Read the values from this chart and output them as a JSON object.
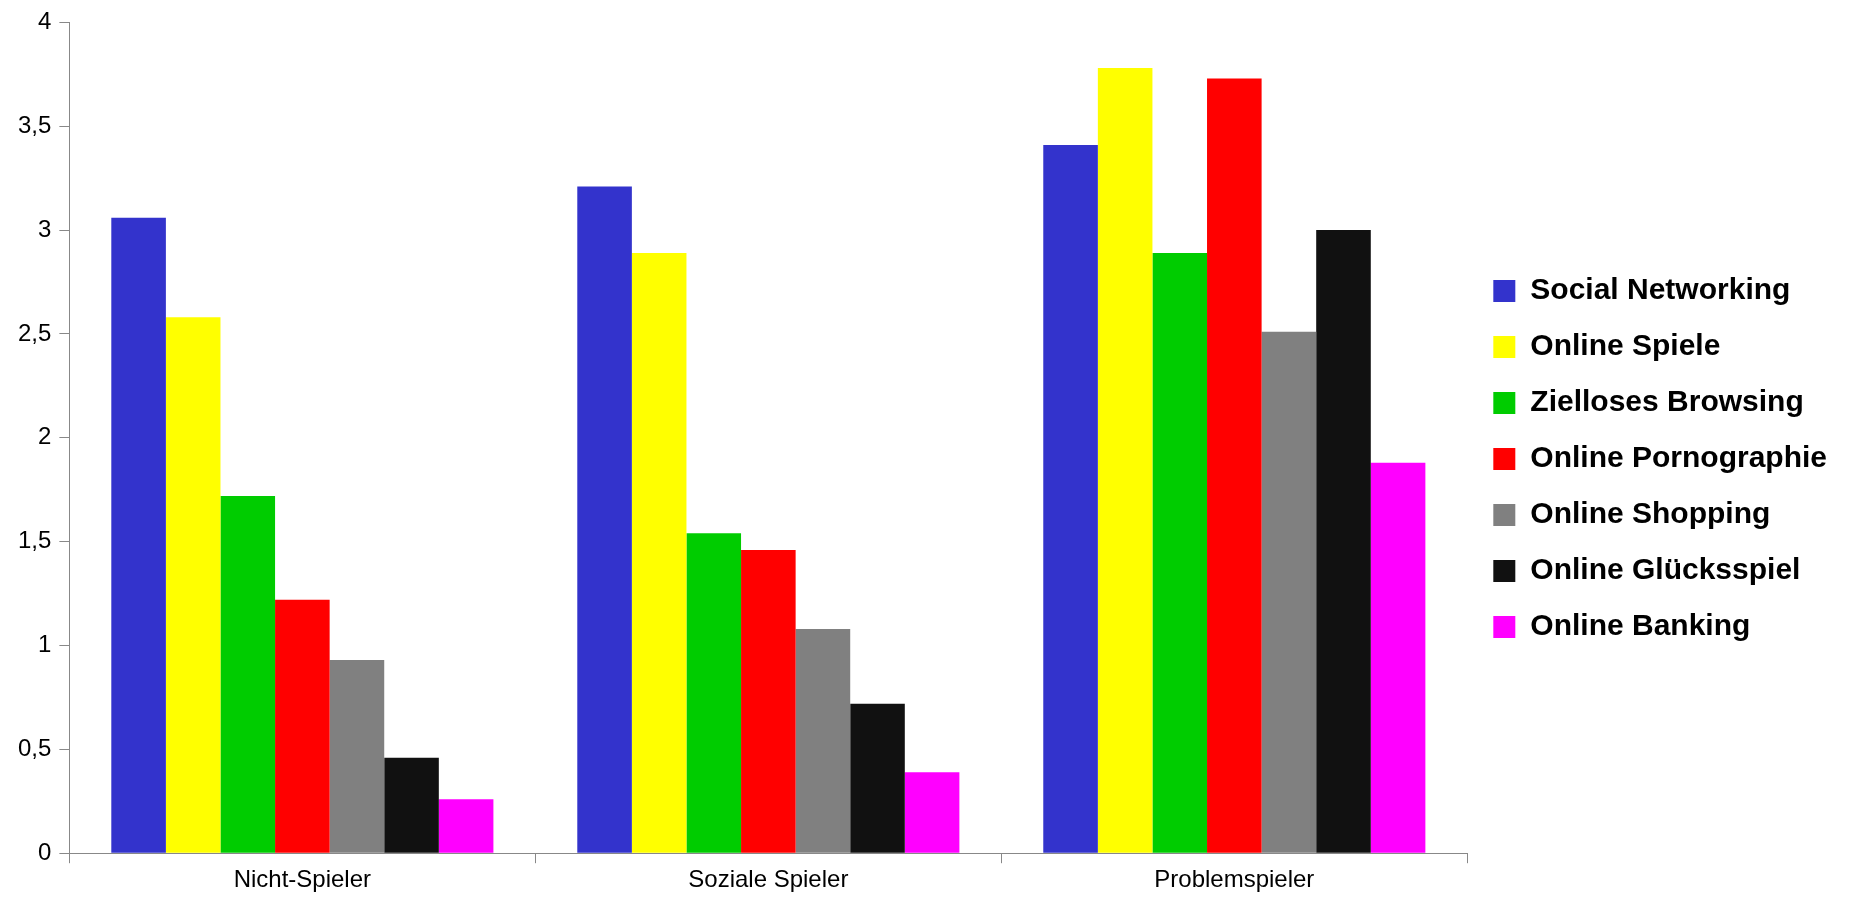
{
  "chart_data": {
    "type": "bar",
    "categories": [
      "Nicht-Spieler",
      "Soziale Spieler",
      "Problemspieler"
    ],
    "series": [
      {
        "name": "Social Networking",
        "color": "#3333cc",
        "values": [
          3.06,
          3.21,
          3.41
        ]
      },
      {
        "name": "Online Spiele",
        "color": "#ffff00",
        "values": [
          2.58,
          2.89,
          3.78
        ]
      },
      {
        "name": "Zielloses Browsing",
        "color": "#00cc00",
        "values": [
          1.72,
          1.54,
          2.89
        ]
      },
      {
        "name": "Online Pornographie",
        "color": "#ff0000",
        "values": [
          1.22,
          1.46,
          3.73
        ]
      },
      {
        "name": "Online Shopping",
        "color": "#808080",
        "values": [
          0.93,
          1.08,
          2.51
        ]
      },
      {
        "name": "Online Glücksspiel",
        "color": "#111111",
        "values": [
          0.46,
          0.72,
          3.0
        ]
      },
      {
        "name": "Online Banking",
        "color": "#ff00ff",
        "values": [
          0.26,
          0.39,
          1.88
        ]
      }
    ],
    "ylim": [
      0,
      4
    ],
    "yticks": [
      0,
      {
        "value": 0.5,
        "label": "0,5"
      },
      1,
      {
        "value": 1.5,
        "label": "1,5"
      },
      2,
      {
        "value": 2.5,
        "label": "2,5"
      },
      3,
      {
        "value": 3.5,
        "label": "3,5"
      },
      4
    ],
    "grid": false,
    "legend": "right"
  }
}
